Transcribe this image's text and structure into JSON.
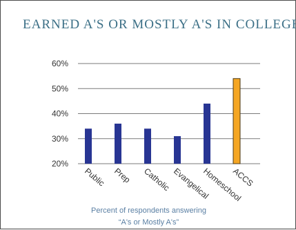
{
  "title": "EARNED A'S OR MOSTLY A'S IN COLLEGE",
  "caption": {
    "line1": "Percent of respondents answering",
    "line2": "“A's or Mostly A's”"
  },
  "colors": {
    "title": "#3b6f86",
    "bar": "#283593",
    "highlight": "#f5a623",
    "highlight_border": "#4a3a1a",
    "grid": "#7a7a7a",
    "tick_text": "#333333",
    "caption": "#5a7fa3"
  },
  "chart_data": {
    "type": "bar",
    "categories": [
      "Public",
      "Prep",
      "Catholic",
      "Evangelical",
      "Homeschool",
      "ACCS"
    ],
    "values": [
      34,
      36,
      34,
      31,
      44,
      54
    ],
    "highlight_category": "ACCS",
    "ylim": [
      20,
      60
    ],
    "yticks": [
      20,
      30,
      40,
      50,
      60
    ],
    "ytick_labels": [
      "20%",
      "30%",
      "40%",
      "50%",
      "60%"
    ],
    "xlabel": "",
    "ylabel": "",
    "grid": true,
    "legend": "none"
  }
}
